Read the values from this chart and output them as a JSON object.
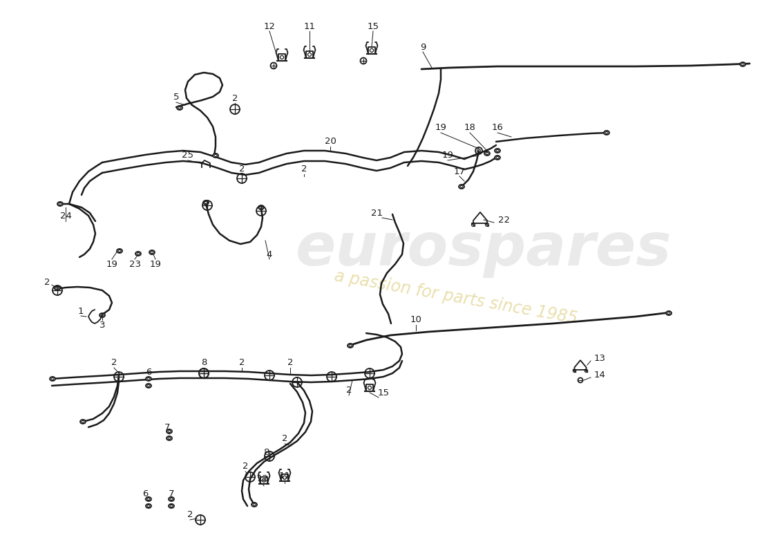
{
  "bg_color": "#ffffff",
  "line_color": "#1a1a1a",
  "watermark1": "eurospares",
  "watermark2": "a passion for parts since 1985",
  "lw_pipe": 1.8,
  "lw_comp": 1.3,
  "lw_leader": 0.7,
  "label_fontsize": 9.5
}
